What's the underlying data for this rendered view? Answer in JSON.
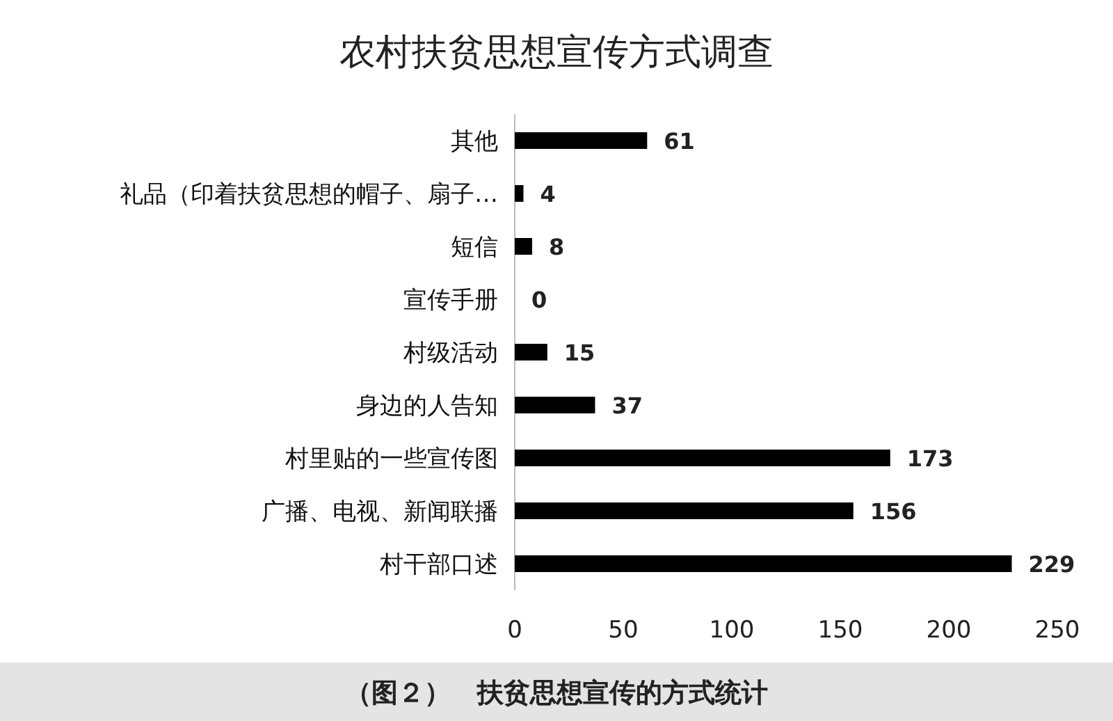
{
  "chart_data": {
    "type": "bar",
    "orientation": "horizontal",
    "title": "农村扶贫思想宣传方式调查",
    "categories": [
      "其他",
      "礼品（印着扶贫思想的帽子、扇子…",
      "短信",
      "宣传手册",
      "村级活动",
      "身边的人告知",
      "村里贴的一些宣传图",
      "广播、电视、新闻联播",
      "村干部口述"
    ],
    "values": [
      61,
      4,
      8,
      0,
      15,
      37,
      173,
      156,
      229
    ],
    "color": "#000000",
    "xlim": [
      0,
      250
    ],
    "xticks": [
      0,
      50,
      100,
      150,
      200,
      250
    ],
    "data_labels": true,
    "annotations": [
      "（图２）　扶贫思想宣传的方式统计"
    ]
  }
}
